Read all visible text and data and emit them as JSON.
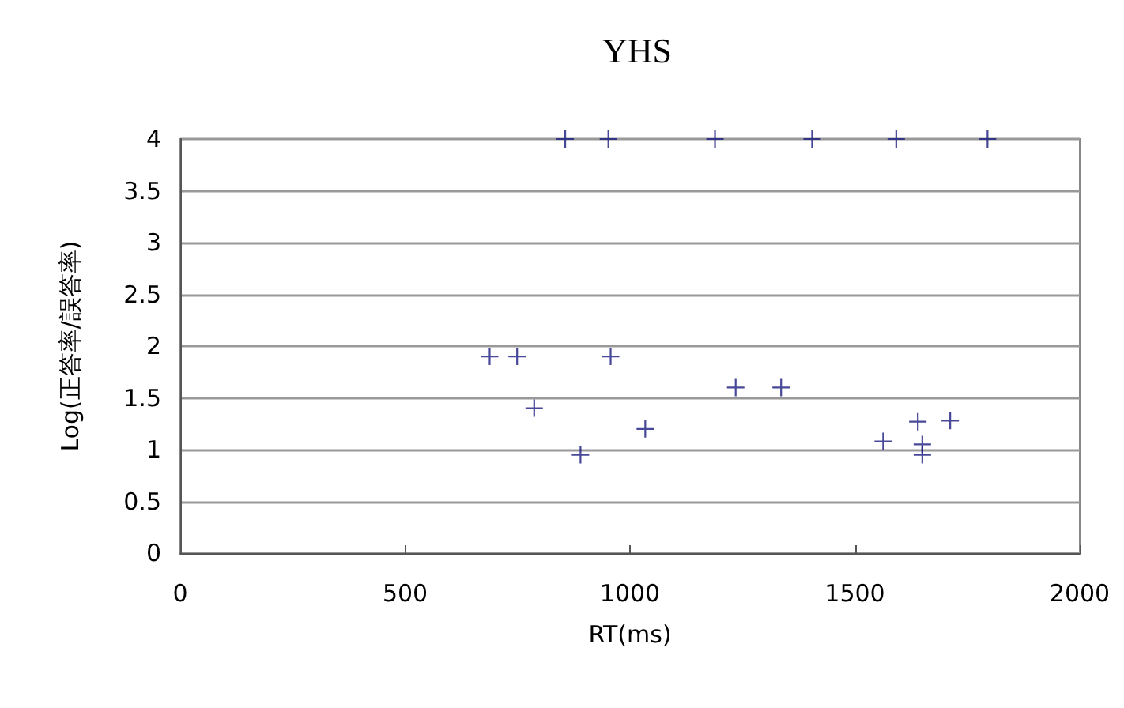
{
  "chart_data": {
    "type": "scatter",
    "title": "YHS",
    "xlabel": "RT(ms)",
    "ylabel": "Log(正答率/誤答率)",
    "xlim": [
      0,
      2000
    ],
    "xticks": [
      0,
      500,
      1000,
      1500,
      2000
    ],
    "ylim": [
      0,
      4
    ],
    "yticks": [
      0,
      0.5,
      1,
      1.5,
      2,
      2.5,
      3,
      3.5,
      4
    ],
    "grid": "y",
    "legend": false,
    "marker": "cross",
    "series": [
      {
        "color": "#1a1a80",
        "x": [
          856,
          688,
          749,
          957,
          787,
          890,
          1034
        ],
        "values": [
          4,
          1.9,
          1.9,
          1.9,
          1.4,
          0.95,
          1.2
        ]
      },
      {
        "color": "#1a1a80",
        "x": [
          952,
          1189,
          1405,
          1592,
          1795,
          1235,
          1336,
          1563,
          1640,
          1712,
          1650,
          1650
        ],
        "values": [
          4,
          4,
          4,
          4,
          4,
          1.6,
          1.6,
          1.08,
          1.27,
          1.28,
          1.05,
          0.95
        ]
      }
    ]
  }
}
